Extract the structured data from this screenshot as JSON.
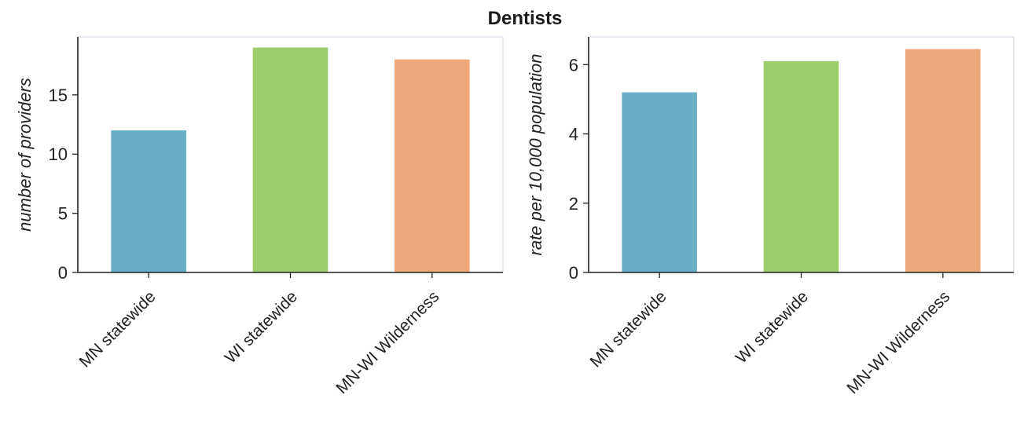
{
  "title": "Dentists",
  "colors": [
    "#6aaec6",
    "#9ccc6c",
    "#eda779"
  ],
  "chart_data": [
    {
      "type": "bar",
      "categories": [
        "MN statewide",
        "WI statewide",
        "MN-WI Wilderness"
      ],
      "values": [
        12,
        19,
        18
      ],
      "ylabel": "number of providers",
      "ylim": [
        0,
        19.9
      ],
      "yticks": [
        0,
        5,
        10,
        15
      ],
      "grid": false
    },
    {
      "type": "bar",
      "categories": [
        "MN statewide",
        "WI statewide",
        "MN-WI Wilderness"
      ],
      "values": [
        5.2,
        6.1,
        6.45
      ],
      "ylabel": "rate per 10,000 population",
      "ylim": [
        0,
        6.8
      ],
      "yticks": [
        0,
        2,
        4,
        6
      ],
      "grid": false
    }
  ]
}
